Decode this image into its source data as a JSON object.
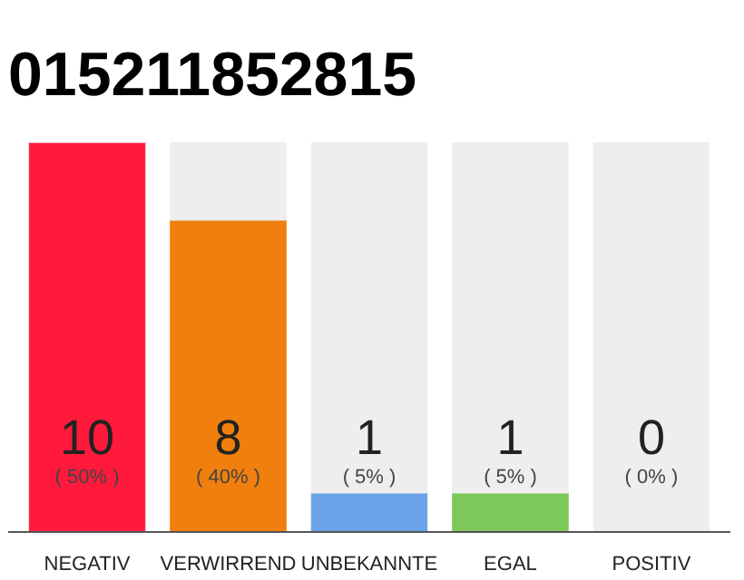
{
  "chart_data": {
    "type": "bar",
    "title": "015211852815",
    "categories": [
      "NEGATIV",
      "VERWIRREND",
      "UNBEKANNTE",
      "EGAL",
      "POSITIV"
    ],
    "stacked": true,
    "series": [
      {
        "values": [
          10,
          8,
          1,
          1,
          0
        ],
        "colors": [
          "#ff1a3c",
          "#f07f0d",
          "#6aa3e8",
          "#7dc85a",
          "#dddddd"
        ],
        "value_labels": [
          "10",
          "8",
          "1",
          "1",
          "0"
        ]
      },
      {
        "values": [
          0,
          2,
          9,
          9,
          10
        ],
        "color": "#eeeeee"
      }
    ],
    "annotations": [
      "( 50% )",
      "( 40% )",
      "( 5% )",
      "( 5% )",
      "( 0% )"
    ],
    "grid": false
  }
}
